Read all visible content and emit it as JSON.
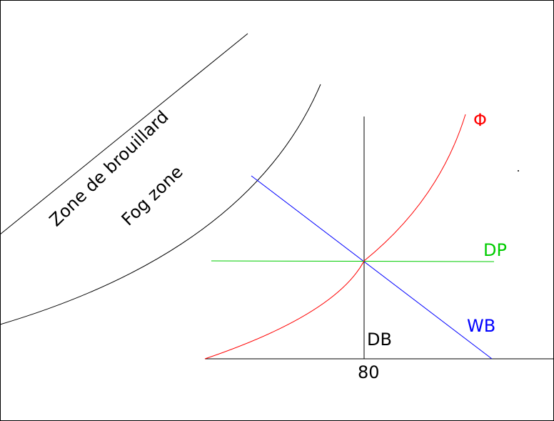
{
  "labels": {
    "zone_fr": "Zone de brouillard",
    "zone_en": "Fog zone",
    "phi": "Φ",
    "dp": "DP",
    "wb": "WB",
    "db": "DB",
    "tick_80": "80"
  },
  "colors": {
    "phi_curve": "#ff0000",
    "dew_point_line": "#00cc00",
    "wet_bulb_line": "#0000ff",
    "dry_bulb_line": "#000000",
    "outline": "#000000",
    "background": "#ffffff"
  }
}
